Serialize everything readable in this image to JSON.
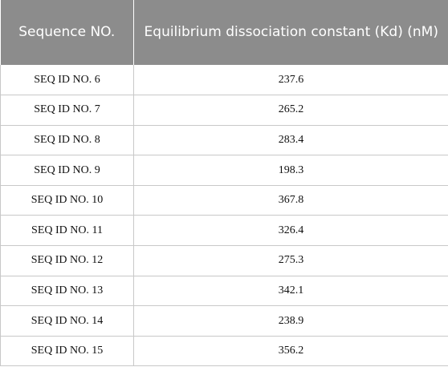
{
  "table": {
    "headers": {
      "sequence": "Sequence NO.",
      "kd": "Equilibrium dissociation constant (Kd) (nM)"
    },
    "rows": [
      {
        "sequence": "SEQ ID NO. 6",
        "kd": "237.6"
      },
      {
        "sequence": "SEQ ID NO. 7",
        "kd": "265.2"
      },
      {
        "sequence": "SEQ ID NO. 8",
        "kd": "283.4"
      },
      {
        "sequence": "SEQ ID NO. 9",
        "kd": "198.3"
      },
      {
        "sequence": "SEQ ID NO. 10",
        "kd": "367.8"
      },
      {
        "sequence": "SEQ ID NO. 11",
        "kd": "326.4"
      },
      {
        "sequence": "SEQ ID NO. 12",
        "kd": "275.3"
      },
      {
        "sequence": "SEQ ID NO. 13",
        "kd": "342.1"
      },
      {
        "sequence": "SEQ ID NO. 14",
        "kd": "238.9"
      },
      {
        "sequence": "SEQ ID NO. 15",
        "kd": "356.2"
      }
    ],
    "colors": {
      "header_background": "#8c8c8c",
      "header_text": "#ffffff",
      "grid_line": "#c8c8c8"
    }
  }
}
